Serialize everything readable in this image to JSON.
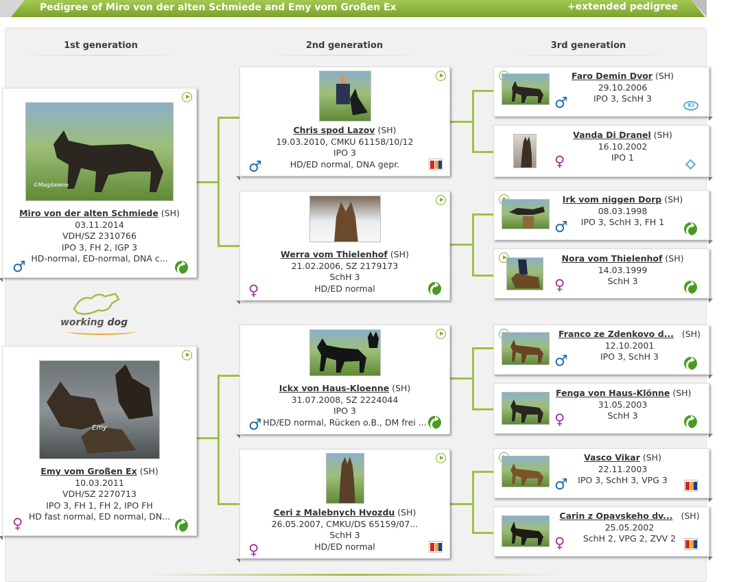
{
  "header": {
    "title": "Pedigree of Miro von der alten Schmiede and Emy vom Großen Ex",
    "extended_link": "+extended pedigree"
  },
  "generations": [
    "1st generation",
    "2nd generation",
    "3rd generation"
  ],
  "logo": {
    "part1": "working",
    "part2": "dog"
  },
  "dogs": {
    "miro": {
      "name": "Miro von der alten Schmiede",
      "suffix": "(SH)",
      "lines": [
        "03.11.2014",
        "VDH/SZ 2310766",
        "IPO 3, FH 2, IGP 3",
        "HD-normal, ED-normal, DNA c..."
      ],
      "sex": "♂",
      "photo_caption": "©Magdalene"
    },
    "emy": {
      "name": "Emy vom Großen Ex",
      "suffix": "(SH)",
      "lines": [
        "10.03.2011",
        "VDH/SZ 2270713",
        "IPO 3, FH 1, FH 2, IPO FH",
        "HD fast normal, ED normal, DN..."
      ],
      "sex": "♀",
      "photo_caption": "Emy"
    },
    "chris": {
      "name": "Chris spod Lazov",
      "suffix": "(SH)",
      "lines": [
        "19.03.2010, CMKU 61158/10/12",
        "IPO 3",
        "HD/ED normal, DNA gepr."
      ],
      "sex": "♂"
    },
    "werra": {
      "name": "Werra vom Thielenhof",
      "suffix": "(SH)",
      "lines": [
        "21.02.2006, SZ 2179173",
        "SchH 3",
        "HD/ED normal"
      ],
      "sex": "♀"
    },
    "ickx": {
      "name": "Ickx von Haus-Kloenne",
      "suffix": "(SH)",
      "lines": [
        "31.07.2008, SZ 2224044",
        "IPO 3",
        "HD/ED normal, Rücken o.B., DM frei ..."
      ],
      "sex": "♂"
    },
    "ceri": {
      "name": "Ceri z Malebnych Hvozdu",
      "suffix": "(SH)",
      "lines": [
        "26.05.2007, CMKU/DS 65159/07...",
        "SchH 3",
        "HD/ED normal"
      ],
      "sex": "♀"
    },
    "faro": {
      "name": "Faro Demin Dvor",
      "suffix": "(SH)",
      "lines": [
        "29.10.2006",
        "IPO 3, SchH 3"
      ],
      "sex": "♂"
    },
    "vanda": {
      "name": "Vanda Di Dranel",
      "suffix": "(SH)",
      "lines": [
        "16.10.2002",
        "IPO 1"
      ],
      "sex": "♀"
    },
    "irk": {
      "name": "Irk vom niggen Dorp",
      "suffix": "(SH)",
      "lines": [
        "08.03.1998",
        "IPO 3, SchH 3, FH 1"
      ],
      "sex": "♂"
    },
    "nora": {
      "name": "Nora vom Thielenhof",
      "suffix": "(SH)",
      "lines": [
        "14.03.1999",
        "SchH 3"
      ],
      "sex": "♀"
    },
    "franco": {
      "name": "Franco ze Zdenkovo d...",
      "suffix": "(SH)",
      "lines": [
        "12.10.2001",
        "IPO 3, SchH 3"
      ],
      "sex": "♂"
    },
    "fenga": {
      "name": "Fenga von Haus-Klönne",
      "suffix": "(SH)",
      "lines": [
        "31.05.2003",
        "SchH 3"
      ],
      "sex": "♀"
    },
    "vasco": {
      "name": "Vasco Vikar",
      "suffix": "(SH)",
      "lines": [
        "22.11.2003",
        "IPO 3, SchH 3, VPG 3"
      ],
      "sex": "♂"
    },
    "carin": {
      "name": "Carin z Opavskeho dv...",
      "suffix": "(SH)",
      "lines": [
        "25.05.2002",
        "SchH 2, VPG 2, ZVV 2"
      ],
      "sex": "♀"
    }
  },
  "icons": [
    "play-video-icon",
    "male-icon",
    "female-icon",
    "kennel-badge-icon",
    "czech-flag-icon",
    "registry-ring-icon"
  ],
  "colors": {
    "accent": "#9dc242",
    "male": "#1e6aa8",
    "female": "#a0309a",
    "badge": "#4a9a22"
  }
}
